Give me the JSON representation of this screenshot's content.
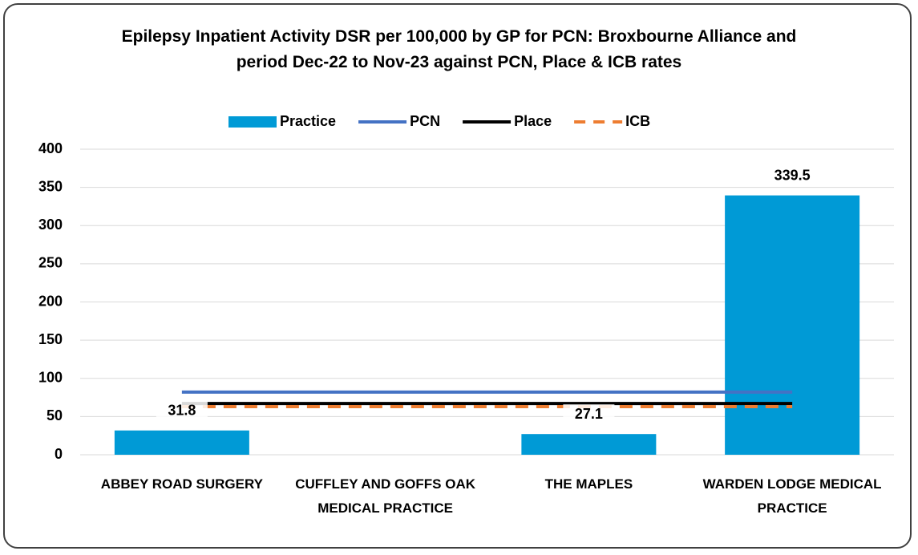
{
  "chart_data": {
    "type": "bar",
    "title": "Epilepsy Inpatient Activity DSR per 100,000 by GP for PCN: Broxbourne Alliance and period Dec-22 to Nov-23 against PCN, Place & ICB rates",
    "categories": [
      "ABBEY ROAD SURGERY",
      "CUFFLEY AND GOFFS OAK MEDICAL PRACTICE",
      "THE MAPLES",
      "WARDEN LODGE MEDICAL PRACTICE"
    ],
    "series": [
      {
        "name": "Practice",
        "type": "bar",
        "color": "#009ad6",
        "values": [
          31.8,
          null,
          27.1,
          339.5
        ]
      },
      {
        "name": "PCN",
        "type": "line",
        "color": "#4472c4",
        "values": [
          82,
          82,
          82,
          82
        ]
      },
      {
        "name": "Place",
        "type": "line",
        "color": "#000000",
        "values": [
          67,
          67,
          67,
          67
        ]
      },
      {
        "name": "ICB",
        "type": "line",
        "color": "#ed7d31",
        "dashed": true,
        "values": [
          63,
          63,
          63,
          63
        ]
      }
    ],
    "ylim": [
      0,
      400
    ],
    "yticks": [
      0,
      50,
      100,
      150,
      200,
      250,
      300,
      350,
      400
    ],
    "grid": true,
    "legend": "top"
  }
}
